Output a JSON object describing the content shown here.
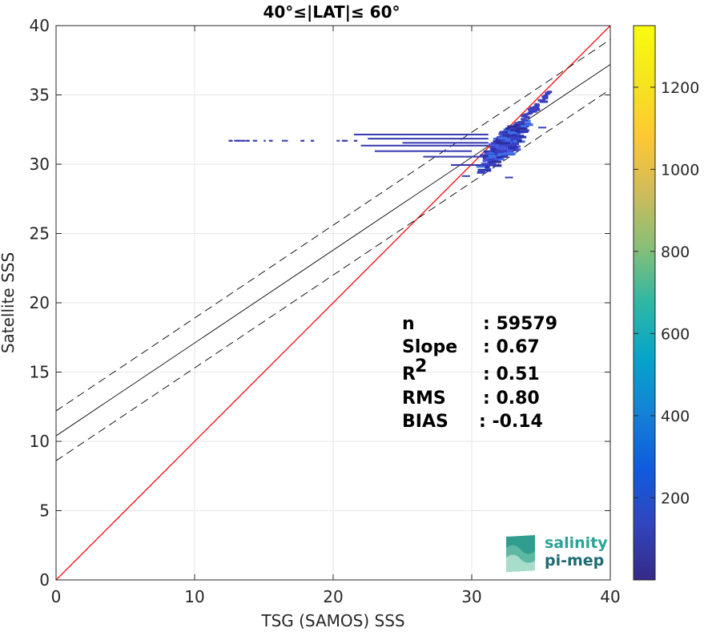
{
  "chart_data": {
    "type": "heatmap",
    "title": "40°≤|LAT|≤ 60°",
    "xlabel": "TSG (SAMOS) SSS",
    "ylabel": "Satellite SSS",
    "xlim": [
      0,
      40
    ],
    "ylim": [
      0,
      40
    ],
    "xticks": [
      "0",
      "10",
      "20",
      "30",
      "40"
    ],
    "yticks": [
      "0",
      "5",
      "10",
      "15",
      "20",
      "25",
      "30",
      "35",
      "40"
    ],
    "grid": true,
    "colorbar": {
      "ticks": [
        "200",
        "400",
        "600",
        "800",
        "1000",
        "1200"
      ],
      "tick_values": [
        200,
        400,
        600,
        800,
        1000,
        1200
      ],
      "range": [
        0,
        1350
      ],
      "colormap": "parula"
    },
    "lines": [
      {
        "type": "identity",
        "color": "#ff0000",
        "x": [
          0,
          40
        ],
        "y": [
          0,
          40
        ]
      },
      {
        "type": "fit",
        "color": "#000000",
        "intercept": 10.4,
        "slope": 0.67
      },
      {
        "type": "fit-plus-std",
        "color": "#000000",
        "dash": true,
        "intercept": 12.2,
        "slope": 0.67
      },
      {
        "type": "fit-minus-std",
        "color": "#000000",
        "dash": true,
        "intercept": 8.6,
        "slope": 0.67
      }
    ],
    "density_clusters": [
      {
        "x": 32.2,
        "y": 31.8,
        "spread": 0.9
      },
      {
        "x": 34.8,
        "y": 35.0,
        "spread": 0.4
      }
    ],
    "stats": {
      "rows": [
        {
          "label": "n",
          "sup": "",
          "value": ": 59579"
        },
        {
          "label": "Slope",
          "sup": "",
          "value": ": 0.67"
        },
        {
          "label": "R",
          "sup": "2",
          "value": ": 0.51"
        },
        {
          "label": "RMS",
          "sup": "",
          "value": ": 0.80"
        },
        {
          "label": "BIAS",
          "sup": "",
          "value": ": -0.14"
        }
      ]
    }
  },
  "logo": {
    "line1": "salinity",
    "line2": "pi-mep"
  }
}
